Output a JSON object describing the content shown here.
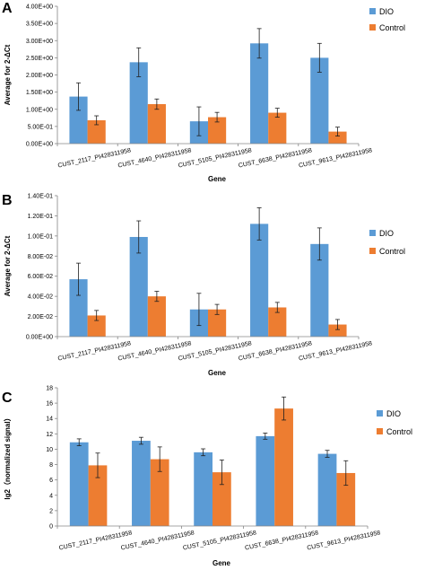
{
  "colors": {
    "dio": "#5b9bd5",
    "control": "#ed7d31",
    "axis": "#868686",
    "error": "#1f1f1f"
  },
  "chart_data": [
    {
      "panel": "A",
      "type": "bar",
      "categories": [
        "CUST_2117_PI428311958",
        "CUST_4640_PI428311958",
        "CUST_5105_PI428311958",
        "CUST_6638_PI428311958",
        "CUST_9613_PI428311958"
      ],
      "series": [
        {
          "name": "DIO",
          "values": [
            1.37,
            2.37,
            0.65,
            2.92,
            2.5
          ],
          "errors": [
            0.4,
            0.42,
            0.42,
            0.43,
            0.42
          ]
        },
        {
          "name": "Control",
          "values": [
            0.68,
            1.15,
            0.77,
            0.9,
            0.35
          ],
          "errors": [
            0.13,
            0.15,
            0.14,
            0.13,
            0.13
          ]
        }
      ],
      "xlabel": "Gene",
      "ylabel": "Average for 2-ΔCt",
      "ylim": [
        0,
        4.0
      ],
      "yticks": [
        0,
        0.5,
        1.0,
        1.5,
        2.0,
        2.5,
        3.0,
        3.5,
        4.0
      ],
      "ytick_labels": [
        "0.00E+00",
        "5.00E-01",
        "1.00E+00",
        "1.50E+00",
        "2.00E+00",
        "2.50E+00",
        "3.00E+00",
        "3.50E+00",
        "4.00E+00"
      ],
      "legend": "right"
    },
    {
      "panel": "B",
      "type": "bar",
      "categories": [
        "CUST_2117_PI428311958",
        "CUST_4640_PI428311958",
        "CUST_5105_PI428311958",
        "CUST_6638_PI428311958",
        "CUST_9613_PI428311958"
      ],
      "series": [
        {
          "name": "DIO",
          "values": [
            0.057,
            0.099,
            0.027,
            0.112,
            0.092
          ],
          "errors": [
            0.016,
            0.016,
            0.016,
            0.016,
            0.016
          ]
        },
        {
          "name": "Control",
          "values": [
            0.021,
            0.04,
            0.027,
            0.029,
            0.012
          ],
          "errors": [
            0.005,
            0.005,
            0.005,
            0.005,
            0.005
          ]
        }
      ],
      "xlabel": "Gene",
      "ylabel": "Average for 2-ΔCt",
      "ylim": [
        0,
        0.14
      ],
      "yticks": [
        0,
        0.02,
        0.04,
        0.06,
        0.08,
        0.1,
        0.12,
        0.14
      ],
      "ytick_labels": [
        "0.00E+00",
        "2.00E-02",
        "4.00E-02",
        "6.00E-02",
        "8.00E-02",
        "1.00E-01",
        "1.20E-01",
        "1.40E-01"
      ],
      "legend": "right"
    },
    {
      "panel": "C",
      "type": "bar",
      "categories": [
        "CUST_2117_PI428311958",
        "CUST_4640_PI428311958",
        "CUST_5105_PI428311958",
        "CUST_6638_PI428311958",
        "CUST_9613_PI428311958"
      ],
      "series": [
        {
          "name": "DIO",
          "values": [
            10.9,
            11.1,
            9.6,
            11.7,
            9.4
          ],
          "errors": [
            0.45,
            0.45,
            0.45,
            0.4,
            0.45
          ]
        },
        {
          "name": "Control",
          "values": [
            7.9,
            8.7,
            7.0,
            15.3,
            6.9
          ],
          "errors": [
            1.6,
            1.6,
            1.6,
            1.5,
            1.6
          ]
        }
      ],
      "xlabel": "Gene",
      "ylabel": "lg2（normalized signal）",
      "ylim": [
        0,
        18
      ],
      "yticks": [
        0,
        2,
        4,
        6,
        8,
        10,
        12,
        14,
        16,
        18
      ],
      "ytick_labels": [
        "0",
        "2",
        "4",
        "6",
        "8",
        "10",
        "12",
        "14",
        "16",
        "18"
      ],
      "legend": "right"
    }
  ]
}
